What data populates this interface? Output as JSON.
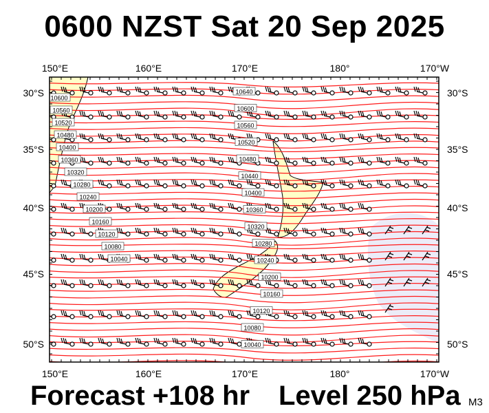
{
  "header": {
    "title": "0600 NZST Sat 20 Sep 2025"
  },
  "footer": {
    "forecast": "Forecast +108 hr",
    "level": "Level 250 hPa",
    "model": "M3"
  },
  "map": {
    "longitude_labels": [
      "150°E",
      "160°E",
      "170°E",
      "180°",
      "170°W"
    ],
    "latitude_labels": [
      "30°S",
      "35°S",
      "40°S",
      "45°S",
      "50°S"
    ],
    "contour_labels": [
      "10640",
      "10600",
      "10560",
      "10520",
      "10480",
      "10440",
      "10400",
      "10360",
      "10320",
      "10280",
      "10240",
      "10200",
      "10160",
      "10120",
      "10080",
      "10040"
    ],
    "west_labels": [
      "10600",
      "10560",
      "10520",
      "10480",
      "10400",
      "10360",
      "10320",
      "10280",
      "10240",
      "10200",
      "10160",
      "10120",
      "10080",
      "10040"
    ],
    "colors": {
      "contour": "#ff1a1a",
      "land": "#ffffc8",
      "low_region": "#ececf8",
      "wind": "#000000"
    }
  }
}
